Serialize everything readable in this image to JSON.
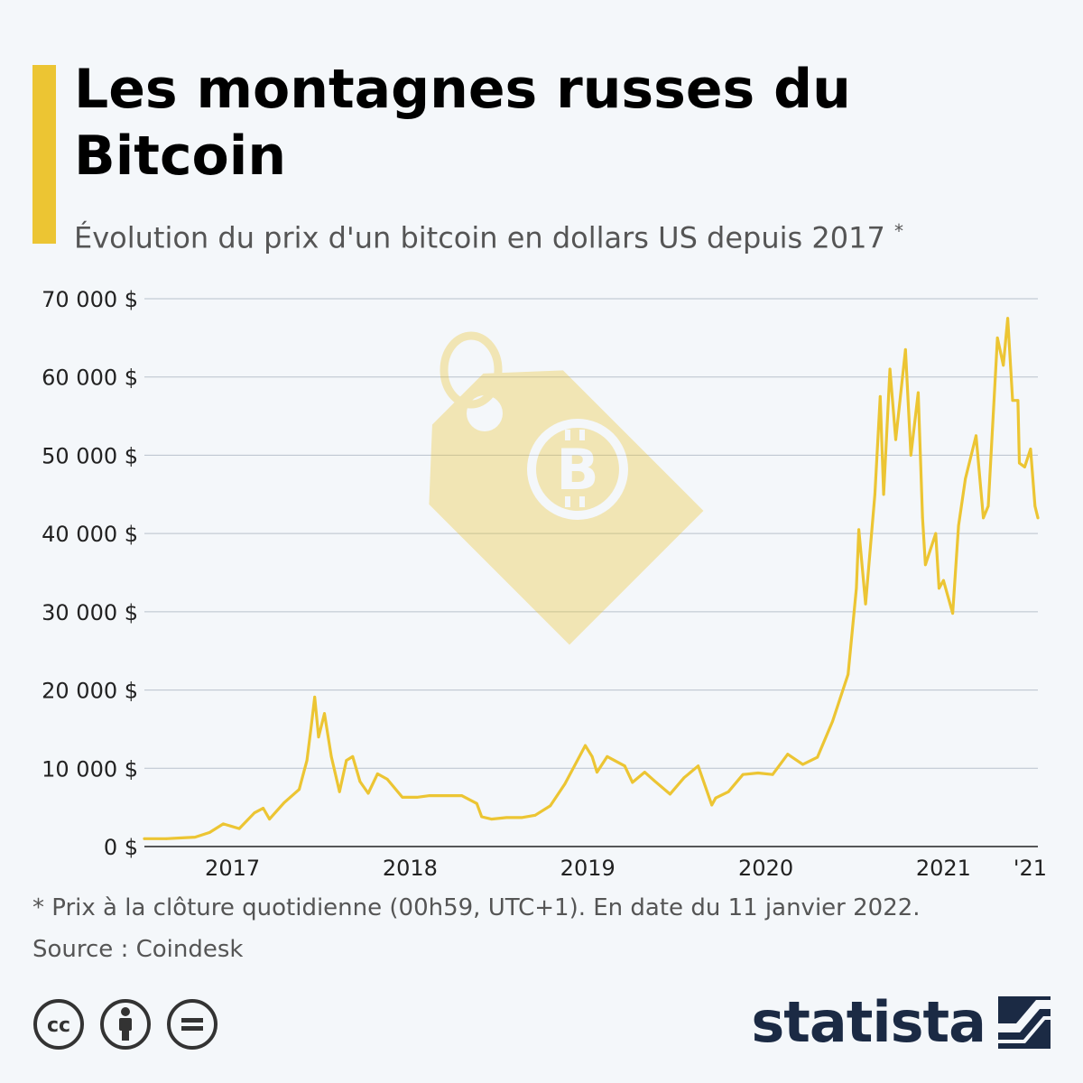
{
  "header": {
    "title": "Les montagnes russes du Bitcoin",
    "subtitle": "Évolution du prix d'un bitcoin en dollars US depuis 2017",
    "subtitle_marker": "*",
    "accent_color": "#ecc533"
  },
  "chart_data": {
    "type": "line",
    "title": "Les montagnes russes du Bitcoin",
    "subtitle": "Évolution du prix d'un bitcoin en dollars US depuis 2017 *",
    "xlabel": "",
    "ylabel": "",
    "ylim": [
      0,
      70000
    ],
    "yticks": [
      0,
      10000,
      20000,
      30000,
      40000,
      50000,
      60000,
      70000
    ],
    "ytick_labels": [
      "0 $",
      "10 000 $",
      "20 000 $",
      "30 000 $",
      "40 000 $",
      "50 000 $",
      "60 000 $",
      "70 000 $"
    ],
    "xlim": [
      "2017-01-01",
      "2022-01-11"
    ],
    "xticks": [
      "2017-07-01",
      "2018-07-01",
      "2019-07-01",
      "2020-07-01",
      "2021-07-01",
      "2022-01-01"
    ],
    "xtick_labels": [
      "2017",
      "2018",
      "2019",
      "2020",
      "2021",
      "'21"
    ],
    "grid": true,
    "line_color": "#ecc533",
    "series": [
      {
        "x": [
          "2017-01-01",
          "2017-02-15",
          "2017-03-15",
          "2017-04-15",
          "2017-05-15",
          "2017-06-12",
          "2017-07-15",
          "2017-08-15",
          "2017-09-02",
          "2017-09-15",
          "2017-10-15",
          "2017-11-15",
          "2017-12-01",
          "2017-12-10",
          "2017-12-17",
          "2017-12-25",
          "2018-01-06",
          "2018-01-20",
          "2018-02-06",
          "2018-02-20",
          "2018-03-05",
          "2018-03-20",
          "2018-04-06",
          "2018-04-25",
          "2018-05-15",
          "2018-06-15",
          "2018-07-15",
          "2018-08-10",
          "2018-09-15",
          "2018-10-15",
          "2018-11-15",
          "2018-11-25",
          "2018-12-15",
          "2019-01-15",
          "2019-02-15",
          "2019-03-15",
          "2019-04-15",
          "2019-05-15",
          "2019-06-26",
          "2019-07-10",
          "2019-07-20",
          "2019-08-10",
          "2019-09-15",
          "2019-10-01",
          "2019-10-26",
          "2019-11-15",
          "2019-12-17",
          "2020-01-15",
          "2020-02-13",
          "2020-03-12",
          "2020-03-20",
          "2020-04-15",
          "2020-05-15",
          "2020-06-15",
          "2020-07-15",
          "2020-08-15",
          "2020-09-15",
          "2020-10-15",
          "2020-11-15",
          "2020-12-01",
          "2020-12-17",
          "2021-01-03",
          "2021-01-08",
          "2021-01-22",
          "2021-02-10",
          "2021-02-21",
          "2021-02-28",
          "2021-03-13",
          "2021-03-25",
          "2021-04-14",
          "2021-04-25",
          "2021-05-10",
          "2021-05-19",
          "2021-05-25",
          "2021-06-15",
          "2021-06-22",
          "2021-07-01",
          "2021-07-20",
          "2021-08-01",
          "2021-08-15",
          "2021-09-06",
          "2021-09-21",
          "2021-10-01",
          "2021-10-20",
          "2021-11-01",
          "2021-11-10",
          "2021-11-20",
          "2021-12-01",
          "2021-12-04",
          "2021-12-15",
          "2021-12-27",
          "2022-01-05",
          "2022-01-11"
        ],
        "values": [
          1000,
          1000,
          1100,
          1200,
          1800,
          2900,
          2300,
          4300,
          4900,
          3500,
          5600,
          7300,
          11000,
          15500,
          19100,
          14000,
          17000,
          11500,
          7000,
          11000,
          11500,
          8300,
          6800,
          9300,
          8600,
          6300,
          6300,
          6500,
          6500,
          6500,
          5500,
          3800,
          3500,
          3700,
          3700,
          4000,
          5200,
          8000,
          12900,
          11500,
          9500,
          11500,
          10300,
          8200,
          9500,
          8400,
          6700,
          8800,
          10300,
          5300,
          6200,
          7000,
          9200,
          9400,
          9200,
          11800,
          10500,
          11400,
          16000,
          19000,
          22000,
          33000,
          40500,
          31000,
          45000,
          57500,
          45000,
          61000,
          52000,
          63500,
          50000,
          58000,
          42000,
          36000,
          40000,
          33000,
          34000,
          29800,
          41000,
          47000,
          52500,
          42000,
          43500,
          65000,
          61500,
          67500,
          57000,
          57000,
          49000,
          48500,
          50800,
          43500,
          42000
        ]
      }
    ]
  },
  "footer": {
    "note": "* Prix à la clôture quotidienne (00h59, UTC+1). En date du 11 janvier 2022.",
    "source": "Source : Coindesk",
    "brand": "statista",
    "brand_color": "#1b2a44"
  },
  "icons": {
    "background": "bitcoin-price-tag-icon",
    "license": [
      "creative-commons-icon",
      "attribution-icon",
      "no-derivatives-icon"
    ],
    "brand": "statista-logo-icon"
  }
}
